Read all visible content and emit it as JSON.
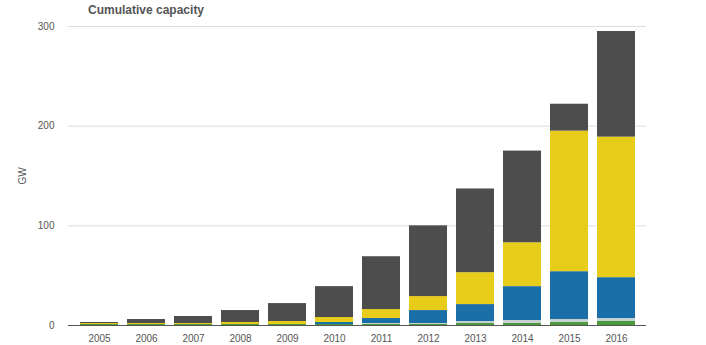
{
  "chart_data": {
    "type": "bar",
    "stacked": true,
    "title": "Cumulative capacity",
    "y_label": "GW",
    "categories": [
      "2005",
      "2006",
      "2007",
      "2008",
      "2009",
      "2010",
      "2011",
      "2012",
      "2013",
      "2014",
      "2015",
      "2016"
    ],
    "series": [
      {
        "color": "#4a9a3c",
        "values": [
          1,
          1,
          1,
          1,
          1,
          1,
          1,
          1,
          2,
          2,
          3,
          4
        ]
      },
      {
        "color": "#c8d2d2",
        "values": [
          0,
          0,
          0,
          0,
          0,
          0,
          1,
          1,
          2,
          3,
          3,
          3
        ]
      },
      {
        "color": "#1a6fa8",
        "values": [
          0,
          0,
          0,
          0,
          0,
          2,
          5,
          13,
          17,
          34,
          48,
          41
        ]
      },
      {
        "color": "#e8cc1a",
        "values": [
          1,
          1,
          1,
          2,
          3,
          5,
          9,
          14,
          32,
          44,
          141,
          141
        ]
      },
      {
        "color": "#4d4d4d",
        "values": [
          1,
          4,
          7,
          12,
          18,
          31,
          53,
          71,
          84,
          92,
          27,
          106
        ]
      }
    ],
    "ylim": [
      0,
      300
    ],
    "yticks": [
      0,
      100,
      200,
      300
    ],
    "grid": true
  }
}
